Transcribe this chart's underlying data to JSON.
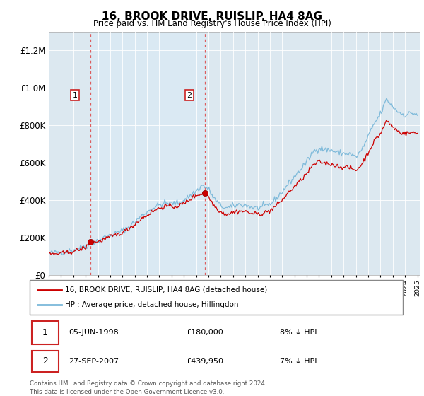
{
  "title": "16, BROOK DRIVE, RUISLIP, HA4 8AG",
  "subtitle": "Price paid vs. HM Land Registry's House Price Index (HPI)",
  "legend_line1": "16, BROOK DRIVE, RUISLIP, HA4 8AG (detached house)",
  "legend_line2": "HPI: Average price, detached house, Hillingdon",
  "sale1_date": "05-JUN-1998",
  "sale1_price": "£180,000",
  "sale1_hpi": "8% ↓ HPI",
  "sale2_date": "27-SEP-2007",
  "sale2_price": "£439,950",
  "sale2_hpi": "7% ↓ HPI",
  "footer": "Contains HM Land Registry data © Crown copyright and database right 2024.\nThis data is licensed under the Open Government Licence v3.0.",
  "hpi_color": "#7ab8d9",
  "price_color": "#cc0000",
  "marker_color": "#cc0000",
  "background_plot": "#dce8f0",
  "shade_color": "#daeaf5",
  "ylim": [
    0,
    1300000
  ],
  "yticks": [
    0,
    200000,
    400000,
    600000,
    800000,
    1000000,
    1200000
  ],
  "sale1_year": 1998.42,
  "sale1_value": 180000,
  "sale2_year": 2007.74,
  "sale2_value": 439950
}
